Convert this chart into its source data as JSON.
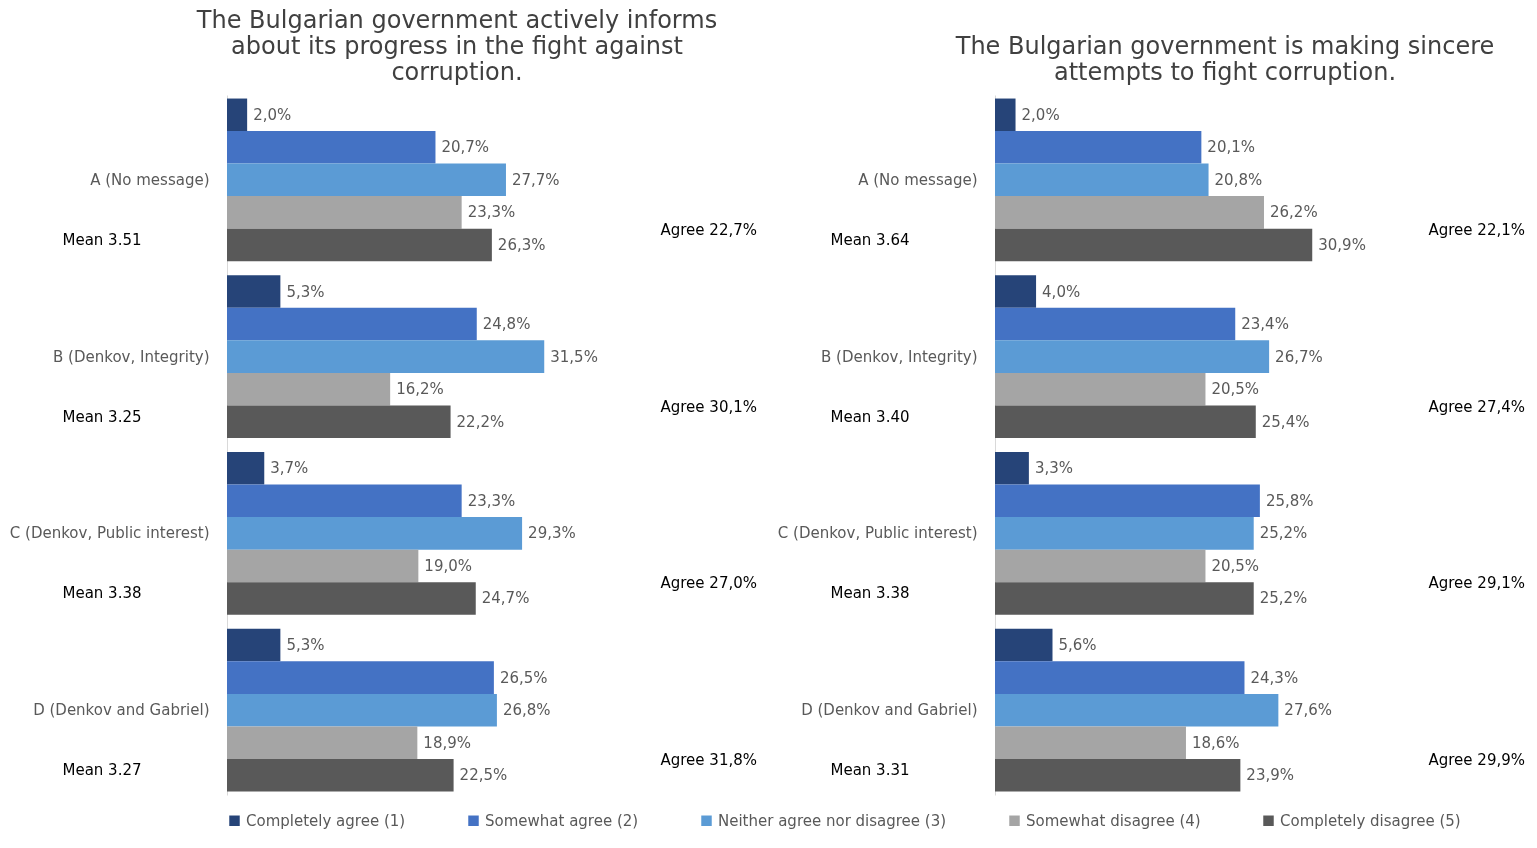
{
  "chart_data": [
    {
      "type": "bar",
      "orientation": "horizontal",
      "title": "The Bulgarian government actively informs about its progress in the fight against corruption.",
      "categories": [
        "A (No message)",
        "B (Denkov, Integrity)",
        "C (Denkov, Public interest)",
        "D (Denkov and Gabriel)"
      ],
      "tick_labels": "y",
      "legend": "bottom",
      "series": [
        {
          "name": "Completely agree (1)",
          "color": "#264478",
          "values": [
            2.0,
            5.3,
            3.7,
            5.3
          ],
          "value_labels": [
            "2,0%",
            "5,3%",
            "3,7%",
            "5,3%"
          ]
        },
        {
          "name": "Somewhat agree (2)",
          "color": "#4472c4",
          "values": [
            20.7,
            24.8,
            23.3,
            26.5
          ],
          "value_labels": [
            "20,7%",
            "24,8%",
            "23,3%",
            "26,5%"
          ]
        },
        {
          "name": "Neither agree nor disagree (3)",
          "color": "#5b9bd5",
          "values": [
            27.7,
            31.5,
            29.3,
            26.8
          ],
          "value_labels": [
            "27,7%",
            "31,5%",
            "29,3%",
            "26,8%"
          ]
        },
        {
          "name": "Somewhat disagree (4)",
          "color": "#a5a5a5",
          "values": [
            23.3,
            16.2,
            19.0,
            18.9
          ],
          "value_labels": [
            "23,3%",
            "16,2%",
            "19,0%",
            "18,9%"
          ]
        },
        {
          "name": "Completely disagree (5)",
          "color": "#595959",
          "values": [
            26.3,
            22.2,
            24.7,
            22.5
          ],
          "value_labels": [
            "26,3%",
            "22,2%",
            "24,7%",
            "22,5%"
          ]
        }
      ],
      "annotations": [
        "Mean 3.51",
        "Agree 22,7%",
        "Mean 3.25",
        "Agree 30,1%",
        "Mean 3.38",
        "Agree 27,0%",
        "Mean 3.27",
        "Agree 31,8%"
      ]
    },
    {
      "type": "bar",
      "orientation": "horizontal",
      "title": "The Bulgarian government is making sincere attempts to fight corruption.",
      "categories": [
        "A (No message)",
        "B (Denkov, Integrity)",
        "C (Denkov, Public interest)",
        "D (Denkov and Gabriel)"
      ],
      "tick_labels": "y",
      "legend": "bottom",
      "series": [
        {
          "name": "Completely agree (1)",
          "color": "#264478",
          "values": [
            2.0,
            4.0,
            3.3,
            5.6
          ],
          "value_labels": [
            "2,0%",
            "4,0%",
            "3,3%",
            "5,6%"
          ]
        },
        {
          "name": "Somewhat agree (2)",
          "color": "#4472c4",
          "values": [
            20.1,
            23.4,
            25.8,
            24.3
          ],
          "value_labels": [
            "20,1%",
            "23,4%",
            "25,8%",
            "24,3%"
          ]
        },
        {
          "name": "Neither agree nor disagree (3)",
          "color": "#5b9bd5",
          "values": [
            20.8,
            26.7,
            25.2,
            27.6
          ],
          "value_labels": [
            "20,8%",
            "26,7%",
            "25,2%",
            "27,6%"
          ]
        },
        {
          "name": "Somewhat disagree (4)",
          "color": "#a5a5a5",
          "values": [
            26.2,
            20.5,
            20.5,
            18.6
          ],
          "value_labels": [
            "26,2%",
            "20,5%",
            "20,5%",
            "18,6%"
          ]
        },
        {
          "name": "Completely disagree (5)",
          "color": "#595959",
          "values": [
            30.9,
            25.4,
            25.2,
            23.9
          ],
          "value_labels": [
            "30,9%",
            "25,4%",
            "25,2%",
            "23,9%"
          ]
        }
      ],
      "annotations": [
        "Mean 3.64",
        "Agree 22,1%",
        "Mean 3.40",
        "Agree 27,4%",
        "Mean 3.38",
        "Agree 29,1%",
        "Mean 3.31",
        "Agree 29,9%"
      ]
    }
  ]
}
